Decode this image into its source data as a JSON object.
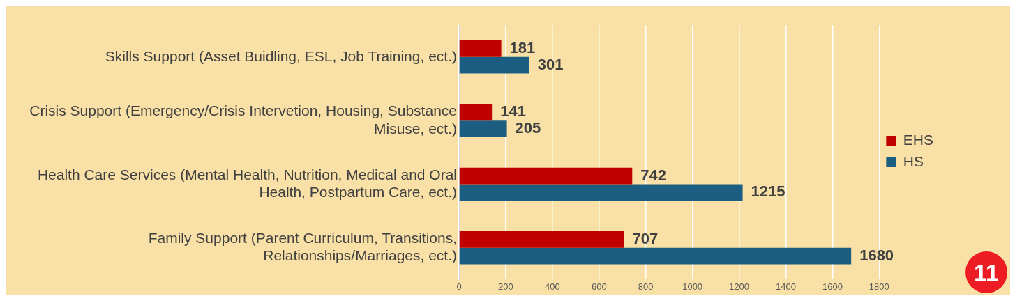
{
  "chart_data": {
    "type": "bar",
    "orientation": "horizontal",
    "categories": [
      "Skills Support (Asset Buidling, ESL, Job Training, ect.)",
      "Crisis Support (Emergency/Crisis Intervetion, Housing, Substance Misuse, ect.)",
      "Health Care Services (Mental Health, Nutrition, Medical and Oral Health, Postpartum Care, ect.)",
      "Family Support (Parent Curriculum, Transitions, Relationships/Marriages, ect.)"
    ],
    "series": [
      {
        "name": "EHS",
        "color": "#c00000",
        "values": [
          181,
          141,
          742,
          707
        ]
      },
      {
        "name": "HS",
        "color": "#1b5e82",
        "values": [
          301,
          205,
          1215,
          1680
        ]
      }
    ],
    "xlim": [
      0,
      1800
    ],
    "xticks": [
      0,
      200,
      400,
      600,
      800,
      1000,
      1200,
      1400,
      1600,
      1800
    ],
    "grid": "x",
    "legend": "right",
    "data_labels": true,
    "annotations": [
      "11"
    ]
  }
}
